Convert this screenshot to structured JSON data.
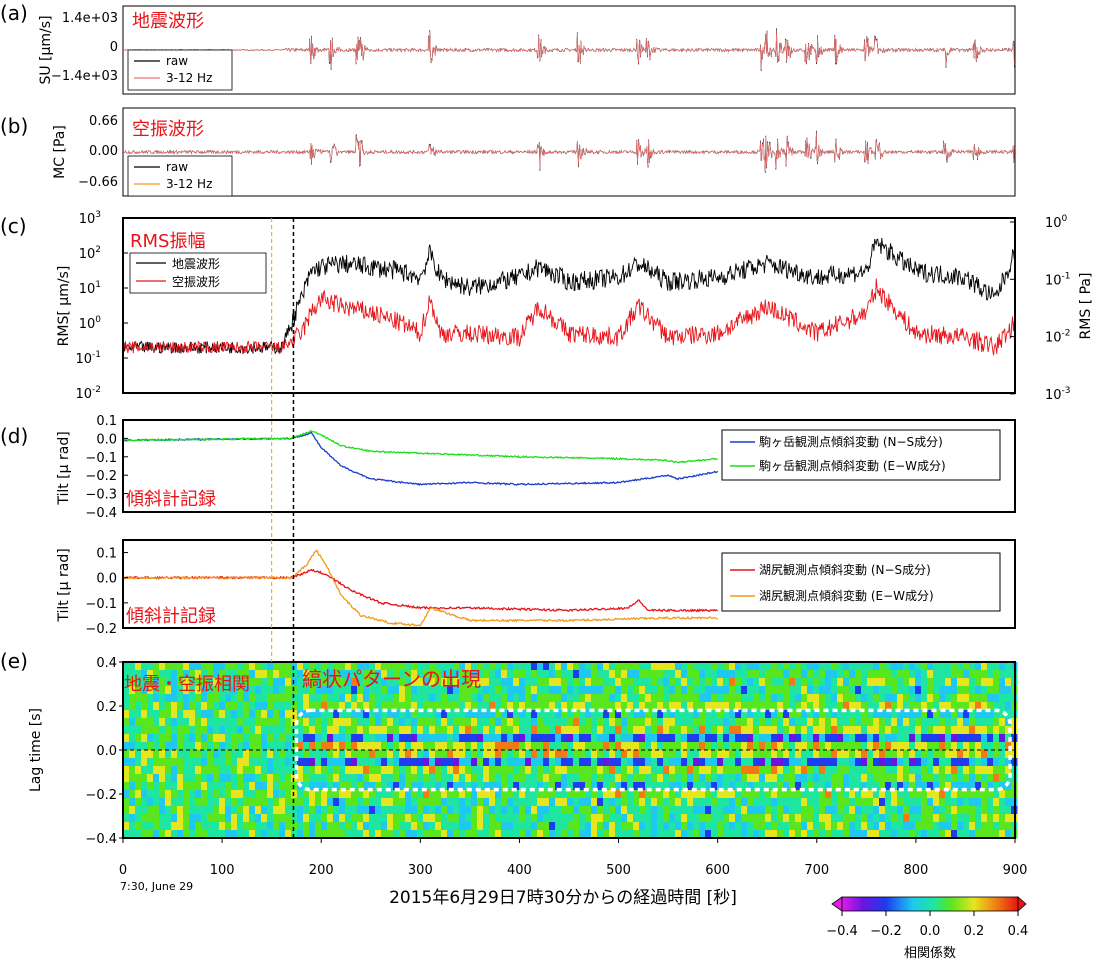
{
  "colors": {
    "raw": "#000000",
    "filtered": "#f07070",
    "seis_rms": "#000000",
    "infra_rms": "#e8141a",
    "ns_koma": "#1a3ec8",
    "ew_koma": "#1ae01a",
    "ns_yuji": "#e8141a",
    "ew_yuji": "#f39a1a",
    "text_red": "#e8141a"
  },
  "chart_data": [
    {
      "panel": "a",
      "type": "line",
      "title": "地震波形",
      "ylabel": "SU [μm/s]",
      "yticks": [
        "1.4e+03",
        "0",
        "−1.4e+03"
      ],
      "ylim": [
        -1800,
        1800
      ],
      "xlim": [
        0,
        900
      ],
      "series": [
        {
          "name": "raw"
        },
        {
          "name": "3-12 Hz"
        }
      ],
      "bursts_x": [
        190,
        210,
        237,
        240,
        310,
        420,
        460,
        520,
        530,
        645,
        650,
        660,
        670,
        690,
        700,
        720,
        750,
        760,
        830,
        860,
        900
      ],
      "noise_from": 160
    },
    {
      "panel": "b",
      "type": "line",
      "title": "空振波形",
      "ylabel": "MC [Pa]",
      "yticks": [
        "0.66",
        "0.00",
        "−0.66"
      ],
      "ylim": [
        -0.9,
        0.9
      ],
      "xlim": [
        0,
        900
      ],
      "series": [
        {
          "name": "raw"
        },
        {
          "name": "3-12 Hz"
        }
      ],
      "bursts_x": [
        190,
        210,
        237,
        240,
        310,
        420,
        460,
        520,
        530,
        645,
        650,
        660,
        670,
        690,
        700,
        720,
        750,
        760,
        830,
        860,
        900
      ],
      "noise_from": 0
    },
    {
      "panel": "c",
      "type": "line",
      "title": "RMS振幅",
      "ylabel_left": "RMS[ μm/s]",
      "ylabel_right": "RMS [ Pa]",
      "yticks_left": [
        "10",
        "10",
        "10",
        "10",
        "10",
        "10"
      ],
      "yticks_left_exp": [
        "3",
        "2",
        "1",
        "0",
        "-1",
        "-2"
      ],
      "yticks_right": [
        "10",
        "10",
        "10",
        "10"
      ],
      "yticks_right_exp": [
        "0",
        "-1",
        "-2",
        "-3"
      ],
      "ylim_log_left": [
        -2,
        3
      ],
      "xlim": [
        0,
        900
      ],
      "series": [
        {
          "name": "地震波形",
          "x": [
            0,
            100,
            160,
            170,
            180,
            190,
            200,
            220,
            250,
            280,
            300,
            310,
            320,
            350,
            400,
            420,
            450,
            500,
            520,
            550,
            600,
            650,
            700,
            750,
            760,
            800,
            850,
            880,
            900
          ],
          "y": [
            0.2,
            0.2,
            0.2,
            1,
            5,
            30,
            40,
            50,
            40,
            30,
            20,
            100,
            20,
            10,
            20,
            40,
            15,
            20,
            50,
            15,
            20,
            50,
            20,
            30,
            200,
            30,
            20,
            5,
            100
          ]
        },
        {
          "name": "空振波形",
          "x": [
            0,
            100,
            160,
            170,
            180,
            190,
            200,
            220,
            250,
            280,
            300,
            310,
            320,
            350,
            400,
            420,
            450,
            500,
            520,
            550,
            600,
            650,
            700,
            750,
            760,
            800,
            850,
            880,
            900
          ],
          "y": [
            0.2,
            0.2,
            0.2,
            0.3,
            0.5,
            2,
            5,
            3,
            2,
            1,
            0.5,
            5,
            0.5,
            0.5,
            0.4,
            3,
            0.5,
            0.4,
            3,
            0.4,
            0.5,
            3,
            0.5,
            2,
            10,
            0.5,
            0.4,
            0.2,
            1
          ]
        }
      ]
    },
    {
      "panel": "d1",
      "type": "line",
      "title": "傾斜計記録",
      "ylabel": "Tilt [μ rad]",
      "ylim": [
        -0.4,
        0.1
      ],
      "yticks": [
        "0.1",
        "0.0",
        "−0.1",
        "−0.2",
        "−0.3",
        "−0.4"
      ],
      "xlim": [
        0,
        900
      ],
      "series": [
        {
          "name": "駒ヶ岳観測点傾斜変動 (N−S成分)",
          "x": [
            0,
            170,
            190,
            200,
            220,
            250,
            300,
            350,
            400,
            500,
            550,
            560,
            600
          ],
          "y": [
            -0.01,
            0,
            0.03,
            -0.05,
            -0.15,
            -0.22,
            -0.25,
            -0.24,
            -0.25,
            -0.24,
            -0.2,
            -0.22,
            -0.18
          ]
        },
        {
          "name": "駒ヶ岳観測点傾斜変動 (E−W成分)",
          "x": [
            0,
            170,
            190,
            200,
            220,
            250,
            300,
            350,
            400,
            500,
            550,
            560,
            600
          ],
          "y": [
            -0.01,
            0,
            0.04,
            0.02,
            -0.04,
            -0.07,
            -0.08,
            -0.09,
            -0.1,
            -0.11,
            -0.12,
            -0.13,
            -0.11
          ]
        }
      ]
    },
    {
      "panel": "d2",
      "type": "line",
      "title": "傾斜計記録",
      "ylabel": "Tilt [μ rad]",
      "ylim": [
        -0.2,
        0.15
      ],
      "yticks": [
        "0.1",
        "0.0",
        "−0.1",
        "−0.2"
      ],
      "xlim": [
        0,
        900
      ],
      "series": [
        {
          "name": "湖尻観測点傾斜変動 (N−S成分)",
          "x": [
            0,
            170,
            190,
            200,
            210,
            230,
            260,
            300,
            350,
            450,
            510,
            520,
            530,
            600
          ],
          "y": [
            0,
            0,
            0.03,
            0.02,
            0,
            -0.05,
            -0.1,
            -0.12,
            -0.12,
            -0.13,
            -0.12,
            -0.09,
            -0.13,
            -0.13
          ]
        },
        {
          "name": "湖尻観測点傾斜変動 (E−W成分)",
          "x": [
            0,
            170,
            185,
            195,
            205,
            220,
            240,
            270,
            300,
            310,
            350,
            450,
            550,
            600
          ],
          "y": [
            0,
            0,
            0.05,
            0.11,
            0.05,
            -0.07,
            -0.15,
            -0.18,
            -0.19,
            -0.12,
            -0.17,
            -0.17,
            -0.16,
            -0.16
          ]
        }
      ]
    },
    {
      "panel": "e",
      "type": "heatmap",
      "title": "地震・空振相関",
      "annotation": "縞状パターンの出現",
      "ylabel": "Lag time [s]",
      "ylim": [
        -0.4,
        0.4
      ],
      "yticks": [
        "0.4",
        "0.2",
        "0.0",
        "−0.2",
        "−0.4"
      ],
      "xlim": [
        0,
        900
      ],
      "xticks": [
        "0",
        "100",
        "200",
        "300",
        "400",
        "500",
        "600",
        "700",
        "800",
        "900"
      ],
      "xsublabel": "7:30, June 29",
      "xlabel": "2015年6月29日7時30分からの経過時間 [秒]",
      "colorbar": {
        "label": "相関係数",
        "ticks": [
          "−0.4",
          "−0.2",
          "0.0",
          "0.2",
          "0.4"
        ],
        "range": [
          -0.4,
          0.4
        ]
      },
      "box_x": [
        175,
        895
      ],
      "box_y": [
        -0.18,
        0.18
      ]
    }
  ],
  "markers": {
    "orange_x": 150,
    "black_x": 172
  },
  "panel_labels": [
    "(a)",
    "(b)",
    "(c)",
    "(d)",
    "(e)"
  ]
}
